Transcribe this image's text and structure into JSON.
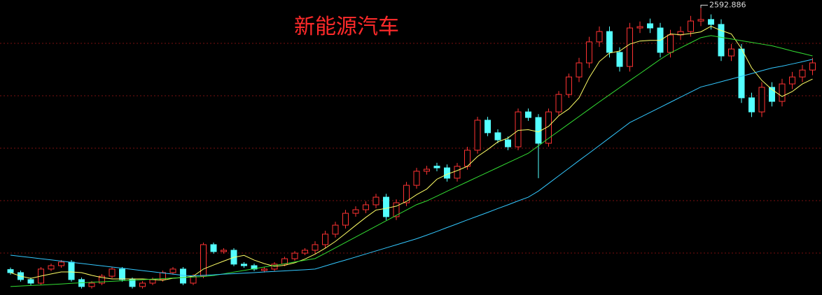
{
  "chart_data": {
    "type": "candlestick",
    "title": "新能源汽车",
    "ylim": [
      900,
      2640
    ],
    "up_color": "#ff3232",
    "down_color": "#54ffff",
    "open": [
      1050,
      1032,
      991,
      970,
      1053,
      1073,
      1094,
      991,
      950,
      970,
      1011,
      1053,
      991,
      950,
      970,
      991,
      1032,
      1053,
      970,
      1011,
      1197,
      1156,
      1164,
      1082,
      1073,
      1045,
      1053,
      1082,
      1114,
      1147,
      1164,
      1197,
      1259,
      1312,
      1382,
      1403,
      1432,
      1477,
      1362,
      1444,
      1547,
      1630,
      1660,
      1650,
      1589,
      1659,
      1754,
      1931,
      1857,
      1815,
      1774,
      1980,
      1947,
      1795,
      1980,
      2083,
      2186,
      2269,
      2393,
      2454,
      2331,
      2248,
      2475,
      2500,
      2475,
      2331,
      2434,
      2454,
      2516,
      2525,
      2496,
      2310,
      2351,
      2063,
      1980,
      2125,
      2042,
      2145,
      2186,
      2227
    ],
    "high": [
      1062,
      1044,
      1003,
      1065,
      1085,
      1106,
      1106,
      1003,
      982,
      1023,
      1065,
      1065,
      1003,
      982,
      1003,
      1044,
      1065,
      1065,
      1023,
      1209,
      1209,
      1176,
      1176,
      1094,
      1085,
      1065,
      1094,
      1126,
      1159,
      1176,
      1217,
      1279,
      1332,
      1402,
      1423,
      1452,
      1497,
      1497,
      1464,
      1567,
      1650,
      1662,
      1680,
      1670,
      1679,
      1774,
      1951,
      1951,
      1877,
      1835,
      2000,
      2000,
      1967,
      2000,
      2103,
      2206,
      2299,
      2423,
      2484,
      2484,
      2361,
      2505,
      2513,
      2530,
      2505,
      2464,
      2484,
      2546,
      2592.886,
      2555,
      2526,
      2381,
      2381,
      2093,
      2155,
      2155,
      2175,
      2216,
      2257,
      2299
    ],
    "low": [
      1020,
      979,
      958,
      958,
      1041,
      1061,
      979,
      938,
      938,
      958,
      999,
      979,
      938,
      938,
      958,
      979,
      1020,
      958,
      958,
      999,
      1144,
      1144,
      1070,
      1061,
      1041,
      1033,
      1041,
      1070,
      1102,
      1135,
      1144,
      1177,
      1239,
      1292,
      1362,
      1383,
      1412,
      1342,
      1342,
      1424,
      1527,
      1610,
      1630,
      1569,
      1569,
      1639,
      1734,
      1837,
      1795,
      1754,
      1754,
      1927,
      1589,
      1775,
      1960,
      2063,
      2156,
      2239,
      2363,
      2301,
      2218,
      2218,
      2445,
      2445,
      2301,
      2301,
      2404,
      2424,
      2486,
      2466,
      2280,
      2280,
      2033,
      1950,
      1950,
      2012,
      2012,
      2115,
      2156,
      2197
    ],
    "close": [
      1032,
      991,
      970,
      1053,
      1073,
      1094,
      991,
      950,
      970,
      1011,
      1053,
      991,
      950,
      970,
      991,
      1032,
      1053,
      970,
      1011,
      1197,
      1156,
      1164,
      1082,
      1073,
      1053,
      1053,
      1082,
      1114,
      1147,
      1164,
      1197,
      1259,
      1312,
      1382,
      1403,
      1432,
      1477,
      1362,
      1444,
      1547,
      1630,
      1642,
      1650,
      1589,
      1659,
      1754,
      1931,
      1857,
      1815,
      1774,
      1980,
      1947,
      1795,
      1980,
      2083,
      2186,
      2269,
      2393,
      2454,
      2331,
      2248,
      2475,
      2483,
      2475,
      2331,
      2434,
      2454,
      2516,
      2525,
      2496,
      2310,
      2351,
      2063,
      1980,
      2125,
      2042,
      2145,
      2186,
      2227,
      2269
    ],
    "series": [
      {
        "color": "#ffff66",
        "values": [
          1032,
          1011,
          998,
          1012,
          1024,
          1036,
          1036,
          1032,
          1016,
          1003,
          995,
          995,
          995,
          995,
          991,
          987,
          999,
          1003,
          1011,
          1053,
          1077,
          1100,
          1122,
          1134,
          1106,
          1085,
          1069,
          1075,
          1090,
          1112,
          1141,
          1176,
          1216,
          1263,
          1311,
          1358,
          1401,
          1411,
          1424,
          1452,
          1492,
          1525,
          1583,
          1612,
          1634,
          1659,
          1717,
          1758,
          1803,
          1826,
          1871,
          1875,
          1862,
          1895,
          1957,
          1998,
          2063,
          2182,
          2277,
          2327,
          2339,
          2380,
          2398,
          2402,
          2402,
          2440,
          2435,
          2442,
          2452,
          2485,
          2460,
          2440,
          2353,
          2240,
          2166,
          2112,
          2071,
          2100,
          2145,
          2174
        ]
      },
      {
        "color": "#33dd33",
        "values": [
          950,
          953,
          956,
          959,
          962,
          965,
          969,
          972,
          975,
          978,
          981,
          984,
          987,
          990,
          994,
          997,
          1000,
          1003,
          1006,
          1009,
          1015,
          1025,
          1035,
          1045,
          1055,
          1065,
          1075,
          1084,
          1095,
          1105,
          1115,
          1146,
          1178,
          1210,
          1242,
          1274,
          1306,
          1338,
          1370,
          1401,
          1433,
          1455,
          1483,
          1512,
          1540,
          1568,
          1596,
          1624,
          1652,
          1680,
          1708,
          1736,
          1780,
          1824,
          1867,
          1910,
          1953,
          1996,
          2039,
          2081,
          2123,
          2165,
          2206,
          2248,
          2290,
          2328,
          2358,
          2388,
          2418,
          2430,
          2420,
          2410,
          2400,
          2390,
          2380,
          2370,
          2355,
          2339,
          2325,
          2310
        ]
      },
      {
        "color": "#33c8ff",
        "values": [
          1135,
          1128,
          1121,
          1114,
          1107,
          1100,
          1093,
          1086,
          1079,
          1072,
          1065,
          1058,
          1051,
          1044,
          1037,
          1030,
          1023,
          1016,
          1013,
          1016,
          1019,
          1023,
          1026,
          1029,
          1032,
          1036,
          1039,
          1042,
          1046,
          1049,
          1053,
          1071,
          1089,
          1106,
          1124,
          1142,
          1160,
          1178,
          1196,
          1214,
          1232,
          1253,
          1275,
          1298,
          1320,
          1343,
          1365,
          1387,
          1410,
          1432,
          1455,
          1477,
          1513,
          1558,
          1603,
          1648,
          1693,
          1737,
          1782,
          1827,
          1872,
          1917,
          1947,
          1977,
          2007,
          2037,
          2067,
          2097,
          2127,
          2142,
          2158,
          2174,
          2190,
          2206,
          2223,
          2239,
          2250,
          2263,
          2276,
          2290
        ]
      }
    ]
  }
}
